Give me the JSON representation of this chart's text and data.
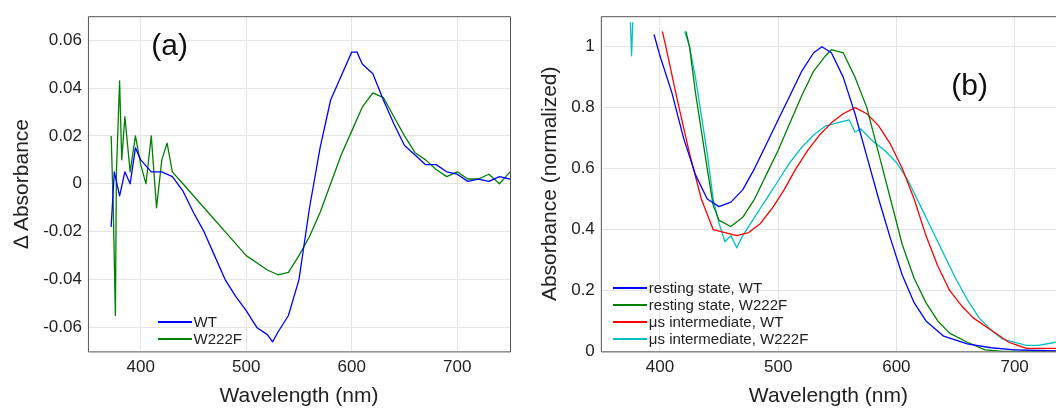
{
  "chart_data": [
    {
      "type": "line",
      "xlabel": "Wavelength (nm)",
      "ylabel": "∆ Absorbance",
      "annotations": [
        "(a)"
      ],
      "xlim": [
        350,
        750
      ],
      "xticks": [
        400,
        500,
        600,
        700
      ],
      "ylim": [
        -0.07,
        0.07
      ],
      "yticks": [
        -0.06,
        -0.04,
        -0.02,
        0,
        0.02,
        0.04,
        0.06
      ],
      "grid": true,
      "legend": "bottom left",
      "marker": "none",
      "line_style": "solid",
      "series": [
        {
          "name": "WT",
          "color": "#0000ff",
          "x": [
            372,
            375,
            380,
            385,
            390,
            395,
            400,
            410,
            420,
            430,
            440,
            450,
            460,
            470,
            480,
            490,
            500,
            510,
            520,
            525,
            530,
            540,
            550,
            560,
            570,
            580,
            590,
            600,
            605,
            610,
            620,
            630,
            640,
            650,
            660,
            670,
            680,
            690,
            700,
            710,
            720,
            730,
            740,
            750
          ],
          "values": [
            -0.018,
            0.005,
            -0.005,
            0.005,
            0,
            0.015,
            0.01,
            0.005,
            0.005,
            0.003,
            -0.003,
            -0.012,
            -0.02,
            -0.03,
            -0.04,
            -0.047,
            -0.053,
            -0.06,
            -0.063,
            -0.066,
            -0.062,
            -0.055,
            -0.04,
            -0.01,
            0.015,
            0.035,
            0.045,
            0.055,
            0.055,
            0.05,
            0.046,
            0.035,
            0.025,
            0.016,
            0.012,
            0.008,
            0.008,
            0.005,
            0.004,
            0.001,
            0.002,
            0.001,
            0.003,
            0.002
          ]
        },
        {
          "name": "W222F",
          "color": "#008000",
          "x": [
            372,
            374,
            376,
            377,
            380,
            382,
            385,
            390,
            395,
            400,
            405,
            410,
            415,
            420,
            425,
            430,
            440,
            450,
            460,
            470,
            480,
            490,
            500,
            510,
            520,
            530,
            540,
            550,
            560,
            570,
            580,
            590,
            600,
            610,
            620,
            630,
            640,
            650,
            660,
            670,
            680,
            690,
            700,
            710,
            720,
            730,
            740,
            750
          ],
          "values": [
            0.02,
            -0.01,
            -0.055,
            0.005,
            0.043,
            0.01,
            0.028,
            0.005,
            0.02,
            0.008,
            0,
            0.02,
            -0.01,
            0.01,
            0.017,
            0.005,
            0,
            -0.005,
            -0.01,
            -0.015,
            -0.02,
            -0.025,
            -0.03,
            -0.033,
            -0.036,
            -0.038,
            -0.037,
            -0.03,
            -0.022,
            -0.012,
            0,
            0.012,
            0.022,
            0.032,
            0.038,
            0.036,
            0.028,
            0.02,
            0.013,
            0.01,
            0.006,
            0.003,
            0.005,
            0.002,
            0.002,
            0.004,
            0,
            0.005
          ]
        }
      ]
    },
    {
      "type": "line",
      "xlabel": "Wavelength (nm)",
      "ylabel": "Absorbance (normalized)",
      "annotations": [
        "(b)"
      ],
      "xlim": [
        350,
        735
      ],
      "xticks": [
        400,
        500,
        600,
        700
      ],
      "ylim": [
        0,
        1.1
      ],
      "yticks": [
        0,
        0.2,
        0.4,
        0.6,
        0.8,
        1
      ],
      "grid": true,
      "legend": "bottom left",
      "marker": "none",
      "line_style": "solid",
      "series": [
        {
          "name": "resting state, WT",
          "color": "#0000ff",
          "x": [
            395,
            400,
            410,
            420,
            430,
            440,
            450,
            460,
            470,
            480,
            490,
            500,
            510,
            520,
            530,
            537,
            545,
            555,
            565,
            575,
            585,
            595,
            605,
            615,
            625,
            640,
            660,
            680,
            700,
            720,
            735
          ],
          "values": [
            1.04,
            0.97,
            0.85,
            0.7,
            0.58,
            0.5,
            0.475,
            0.49,
            0.53,
            0.6,
            0.68,
            0.76,
            0.84,
            0.92,
            0.98,
            1,
            0.98,
            0.9,
            0.78,
            0.64,
            0.5,
            0.37,
            0.25,
            0.16,
            0.1,
            0.05,
            0.025,
            0.012,
            0.005,
            0.003,
            0.002
          ]
        },
        {
          "name": "resting state, W222F",
          "color": "#008000",
          "x": [
            422,
            425,
            430,
            440,
            445,
            450,
            460,
            470,
            480,
            490,
            500,
            510,
            520,
            530,
            540,
            545,
            555,
            565,
            575,
            585,
            595,
            605,
            615,
            625,
            635,
            645,
            660,
            675,
            690,
            710,
            735
          ],
          "values": [
            1.05,
            1,
            0.85,
            0.6,
            0.48,
            0.43,
            0.41,
            0.44,
            0.5,
            0.58,
            0.66,
            0.75,
            0.84,
            0.92,
            0.97,
            0.99,
            0.98,
            0.9,
            0.8,
            0.65,
            0.5,
            0.35,
            0.24,
            0.16,
            0.1,
            0.06,
            0.03,
            0.005,
            0,
            0,
            0
          ]
        },
        {
          "name": "μs intermediate, WT",
          "color": "#ff0000",
          "x": [
            402,
            405,
            415,
            425,
            435,
            445,
            455,
            465,
            475,
            485,
            495,
            505,
            515,
            525,
            535,
            545,
            555,
            565,
            575,
            585,
            595,
            605,
            615,
            625,
            635,
            645,
            655,
            665,
            680,
            695,
            710,
            735
          ],
          "values": [
            1.05,
            1,
            0.82,
            0.65,
            0.5,
            0.4,
            0.39,
            0.38,
            0.39,
            0.42,
            0.47,
            0.53,
            0.6,
            0.66,
            0.71,
            0.75,
            0.78,
            0.8,
            0.78,
            0.74,
            0.68,
            0.6,
            0.5,
            0.38,
            0.28,
            0.2,
            0.15,
            0.11,
            0.07,
            0.03,
            0.01,
            0.01
          ]
        },
        {
          "name": "μs intermediate, W222F",
          "color": "#00c0c0",
          "x": [
            375,
            376,
            377,
            400,
            421,
            425,
            430,
            440,
            445,
            450,
            455,
            460,
            465,
            470,
            480,
            490,
            500,
            510,
            520,
            530,
            540,
            550,
            560,
            565,
            570,
            580,
            590,
            600,
            610,
            620,
            630,
            640,
            650,
            660,
            670,
            680,
            690,
            700,
            710,
            720,
            735
          ],
          "values": [
            1.08,
            0.97,
            1.08,
            null,
            1.05,
            1,
            0.9,
            0.65,
            0.5,
            0.42,
            0.36,
            0.38,
            0.34,
            0.38,
            0.44,
            0.5,
            0.56,
            0.62,
            0.67,
            0.71,
            0.74,
            0.75,
            0.76,
            0.72,
            0.73,
            0.69,
            0.66,
            0.62,
            0.56,
            0.48,
            0.4,
            0.32,
            0.24,
            0.17,
            0.11,
            0.07,
            0.04,
            0.03,
            0.02,
            0.02,
            0.03
          ]
        }
      ]
    }
  ]
}
